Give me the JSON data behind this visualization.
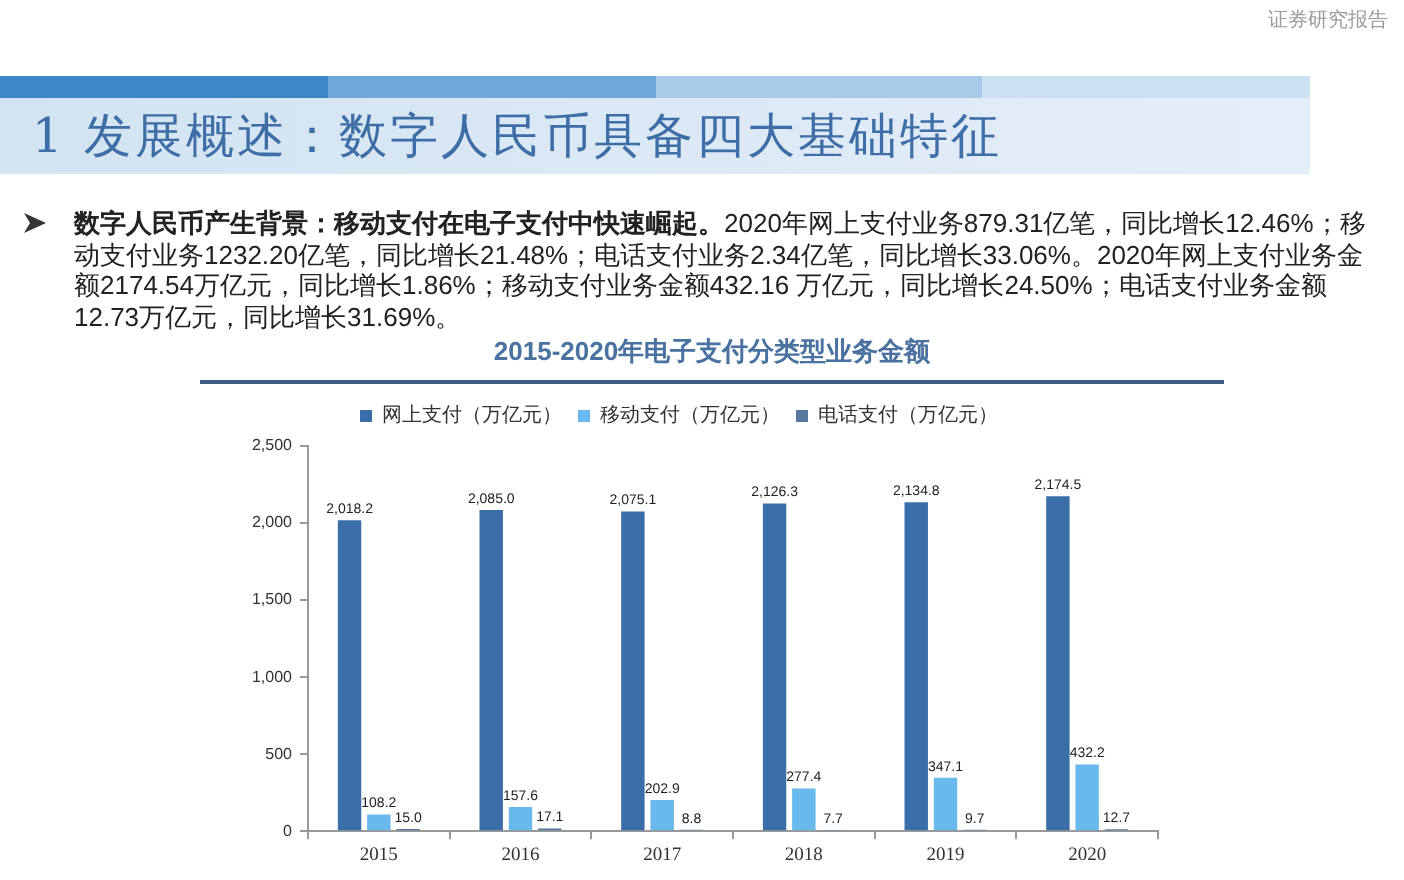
{
  "chart_data": {
    "type": "bar",
    "title": "2015-2020年电子支付分类型业务金额",
    "annotations": [
      "证券研究报告",
      "1 发展概述：数字人民币具备四大基础特征",
      "数字人民币产生背景：移动支付在电子支付中快速崛起。",
      "2020年网上支付业务879.31亿笔，同比增长12.46%；移动支付业务1232.20亿笔，同比增长21.48%；电话支付业务2.34亿笔，同比增长33.06%。2020年网上支付业务金额2174.54万亿元，同比增长1.86%；移动支付业务金额432.16 万亿元，同比增长24.50%；电话支付业务金额12.73万亿元，同比增长31.69%。"
    ],
    "categories": [
      "2015",
      "2016",
      "2017",
      "2018",
      "2019",
      "2020"
    ],
    "series": [
      {
        "name": "网上支付（万亿元）",
        "color": "#3b6ea8",
        "values": [
          2018.2,
          2085.0,
          2075.1,
          2126.3,
          2134.8,
          2174.5
        ],
        "value_labels": [
          "2,018.2",
          "2,085.0",
          "2,075.1",
          "2,126.3",
          "2,134.8",
          "2,174.5"
        ]
      },
      {
        "name": "移动支付（万亿元）",
        "color": "#6ab9ec",
        "values": [
          108.2,
          157.6,
          202.9,
          277.4,
          347.1,
          432.2
        ],
        "value_labels": [
          "108.2",
          "157.6",
          "202.9",
          "277.4",
          "347.1",
          "432.2"
        ]
      },
      {
        "name": "电话支付（万亿元）",
        "color": "#58799f",
        "values": [
          15.0,
          17.1,
          8.8,
          7.7,
          9.7,
          12.7
        ],
        "value_labels": [
          "15.0",
          "17.1",
          "8.8",
          "7.7",
          "9.7",
          "12.7"
        ]
      }
    ],
    "ylim": [
      0,
      2500
    ],
    "yticks": [
      0,
      500,
      {
        "value": 1000,
        "label": "1,000"
      },
      {
        "value": 1500,
        "label": "1,500"
      },
      {
        "value": 2000,
        "label": "2,000"
      },
      {
        "value": 2500,
        "label": "2,500"
      }
    ],
    "legend": "top",
    "grid": false
  }
}
